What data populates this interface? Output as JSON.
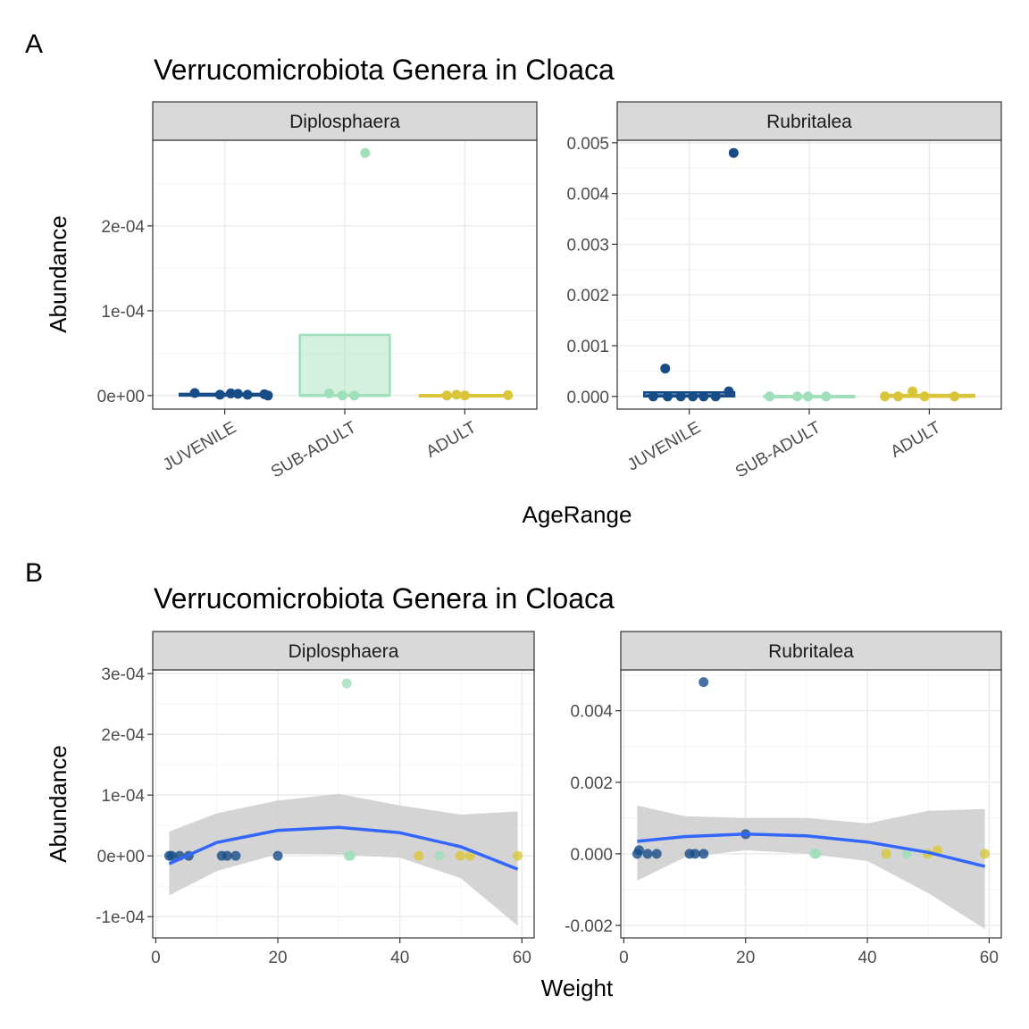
{
  "figure": {
    "label_a": "A",
    "label_b": "B"
  },
  "colors": {
    "JUVENILE": "#174c87",
    "SUB-ADULT": "#9fdfb9",
    "ADULT": "#d9c53a",
    "fit_line": "#3366ff",
    "ribbon": "#cccccc"
  },
  "chart_data": [
    {
      "type": "box",
      "panel": "A",
      "title": "Verrucomicrobiota Genera in Cloaca",
      "xlabel": "AgeRange",
      "ylabel": "Abundance",
      "categories": [
        "JUVENILE",
        "SUB-ADULT",
        "ADULT"
      ],
      "grid": true,
      "legend": "none",
      "facets": [
        {
          "name": "Diplosphaera",
          "ylim": [
            -1.6e-05,
            0.000301
          ],
          "yticks": [
            0,
            0.0001,
            0.0002
          ],
          "ytick_labels": [
            "0e+00",
            "1e-04",
            "2e-04"
          ],
          "boxes": [
            {
              "category": "JUVENILE",
              "q1": 0,
              "median": 5e-07,
              "q3": 2e-06
            },
            {
              "category": "SUB-ADULT",
              "q1": 0,
              "median": 0,
              "q3": 7.15e-05
            },
            {
              "category": "ADULT",
              "q1": 0,
              "median": 0,
              "q3": 5e-07
            }
          ],
          "points": [
            {
              "category": "JUVENILE",
              "jitter": -0.25,
              "value": 3e-06
            },
            {
              "category": "JUVENILE",
              "jitter": -0.04,
              "value": 1e-06
            },
            {
              "category": "JUVENILE",
              "jitter": 0.05,
              "value": 2.5e-06
            },
            {
              "category": "JUVENILE",
              "jitter": 0.11,
              "value": 2e-06
            },
            {
              "category": "JUVENILE",
              "jitter": 0.19,
              "value": 1e-06
            },
            {
              "category": "JUVENILE",
              "jitter": 0.33,
              "value": 1.5e-06
            },
            {
              "category": "JUVENILE",
              "jitter": 0.36,
              "value": 0
            },
            {
              "category": "SUB-ADULT",
              "jitter": -0.13,
              "value": 2.5e-06
            },
            {
              "category": "SUB-ADULT",
              "jitter": -0.02,
              "value": 0
            },
            {
              "category": "SUB-ADULT",
              "jitter": 0.08,
              "value": 0
            },
            {
              "category": "SUB-ADULT",
              "jitter": 0.17,
              "value": 0.000286
            },
            {
              "category": "ADULT",
              "jitter": -0.15,
              "value": 0
            },
            {
              "category": "ADULT",
              "jitter": -0.07,
              "value": 1e-06
            },
            {
              "category": "ADULT",
              "jitter": 0,
              "value": 0
            },
            {
              "category": "ADULT",
              "jitter": 0.36,
              "value": 5e-07
            }
          ]
        },
        {
          "name": "Rubritalea",
          "ylim": [
            -0.00025,
            0.00505
          ],
          "yticks": [
            0,
            0.001,
            0.002,
            0.003,
            0.004,
            0.005
          ],
          "ytick_labels": [
            "0.000",
            "0.001",
            "0.002",
            "0.003",
            "0.004",
            "0.005"
          ],
          "boxes": [
            {
              "category": "JUVENILE",
              "q1": 0,
              "median": 1e-05,
              "q3": 8e-05
            },
            {
              "category": "SUB-ADULT",
              "q1": 0,
              "median": 0,
              "q3": 1e-05
            },
            {
              "category": "ADULT",
              "q1": 0,
              "median": 0,
              "q3": 3e-05
            }
          ],
          "points": [
            {
              "category": "JUVENILE",
              "jitter": -0.3,
              "value": 0
            },
            {
              "category": "JUVENILE",
              "jitter": -0.2,
              "value": 0.00055
            },
            {
              "category": "JUVENILE",
              "jitter": -0.18,
              "value": 0
            },
            {
              "category": "JUVENILE",
              "jitter": -0.07,
              "value": 0
            },
            {
              "category": "JUVENILE",
              "jitter": 0.03,
              "value": 0
            },
            {
              "category": "JUVENILE",
              "jitter": 0.12,
              "value": 0
            },
            {
              "category": "JUVENILE",
              "jitter": 0.22,
              "value": 0
            },
            {
              "category": "JUVENILE",
              "jitter": 0.33,
              "value": 0.0001
            },
            {
              "category": "JUVENILE",
              "jitter": 0.37,
              "value": 0.0048
            },
            {
              "category": "SUB-ADULT",
              "jitter": -0.33,
              "value": 0
            },
            {
              "category": "SUB-ADULT",
              "jitter": -0.1,
              "value": 0
            },
            {
              "category": "SUB-ADULT",
              "jitter": -0.01,
              "value": 0
            },
            {
              "category": "SUB-ADULT",
              "jitter": 0.14,
              "value": 0
            },
            {
              "category": "ADULT",
              "jitter": -0.37,
              "value": 0
            },
            {
              "category": "ADULT",
              "jitter": -0.26,
              "value": 0
            },
            {
              "category": "ADULT",
              "jitter": -0.14,
              "value": 0.0001
            },
            {
              "category": "ADULT",
              "jitter": -0.04,
              "value": 0
            },
            {
              "category": "ADULT",
              "jitter": 0.21,
              "value": 0
            }
          ]
        }
      ]
    },
    {
      "type": "scatter",
      "panel": "B",
      "title": "Verrucomicrobiota Genera in Cloaca",
      "xlabel": "Weight",
      "ylabel": "Abundance",
      "xlim": [
        -0.5,
        62
      ],
      "xticks": [
        0,
        20,
        40,
        60
      ],
      "grid": true,
      "legend": "none",
      "facets": [
        {
          "name": "Diplosphaera",
          "ylim": [
            -0.000135,
            0.000306
          ],
          "yticks": [
            -0.0001,
            0,
            0.0001,
            0.0002,
            0.0003
          ],
          "ytick_labels": [
            "-1e-04",
            "0e+00",
            "1e-04",
            "2e-04",
            "3e-04"
          ],
          "points": [
            {
              "x": 2.2,
              "y": 0,
              "group": "JUVENILE"
            },
            {
              "x": 2.6,
              "y": 0,
              "group": "JUVENILE"
            },
            {
              "x": 3.9,
              "y": 0,
              "group": "JUVENILE"
            },
            {
              "x": 5.4,
              "y": 0,
              "group": "JUVENILE"
            },
            {
              "x": 10.8,
              "y": 0,
              "group": "JUVENILE"
            },
            {
              "x": 11.7,
              "y": 0,
              "group": "JUVENILE"
            },
            {
              "x": 13.1,
              "y": 0,
              "group": "JUVENILE"
            },
            {
              "x": 20.0,
              "y": 0,
              "group": "JUVENILE"
            },
            {
              "x": 31.3,
              "y": 0.000284,
              "group": "SUB-ADULT"
            },
            {
              "x": 31.6,
              "y": 0,
              "group": "SUB-ADULT"
            },
            {
              "x": 31.9,
              "y": 0,
              "group": "SUB-ADULT"
            },
            {
              "x": 43.1,
              "y": 0,
              "group": "ADULT"
            },
            {
              "x": 46.5,
              "y": 0,
              "group": "SUB-ADULT"
            },
            {
              "x": 49.9,
              "y": 0,
              "group": "ADULT"
            },
            {
              "x": 51.5,
              "y": 0,
              "group": "ADULT"
            },
            {
              "x": 59.3,
              "y": 0,
              "group": "ADULT"
            }
          ],
          "fit": {
            "x": [
              2.2,
              10,
              20,
              30,
              40,
              50,
              59.3
            ],
            "y": [
              -1.3e-05,
              2.2e-05,
              4.2e-05,
              4.7e-05,
              3.8e-05,
              1.5e-05,
              -2.2e-05
            ],
            "lower": [
              -6.5e-05,
              -2.5e-05,
              3e-06,
              2e-06,
              -3e-06,
              -3.7e-05,
              -0.000115
            ],
            "upper": [
              4e-05,
              7e-05,
              9.1e-05,
              0.000102,
              8.3e-05,
              6.8e-05,
              7.3e-05
            ]
          }
        },
        {
          "name": "Rubritalea",
          "ylim": [
            -0.00235,
            0.00514
          ],
          "yticks": [
            -0.002,
            0,
            0.002,
            0.004
          ],
          "ytick_labels": [
            "-0.002",
            "0.000",
            "0.002",
            "0.004"
          ],
          "points": [
            {
              "x": 2.2,
              "y": 0,
              "group": "JUVENILE"
            },
            {
              "x": 2.5,
              "y": 0.0001,
              "group": "JUVENILE"
            },
            {
              "x": 3.9,
              "y": 0,
              "group": "JUVENILE"
            },
            {
              "x": 5.4,
              "y": 0,
              "group": "JUVENILE"
            },
            {
              "x": 10.8,
              "y": 0,
              "group": "JUVENILE"
            },
            {
              "x": 11.7,
              "y": 0,
              "group": "JUVENILE"
            },
            {
              "x": 13.1,
              "y": 0,
              "group": "JUVENILE"
            },
            {
              "x": 13.1,
              "y": 0.0048,
              "group": "JUVENILE"
            },
            {
              "x": 20.0,
              "y": 0.00055,
              "group": "JUVENILE"
            },
            {
              "x": 31.3,
              "y": 0,
              "group": "SUB-ADULT"
            },
            {
              "x": 31.6,
              "y": 0,
              "group": "SUB-ADULT"
            },
            {
              "x": 43.1,
              "y": 0,
              "group": "ADULT"
            },
            {
              "x": 46.5,
              "y": 0,
              "group": "SUB-ADULT"
            },
            {
              "x": 49.9,
              "y": 0,
              "group": "ADULT"
            },
            {
              "x": 51.5,
              "y": 0.0001,
              "group": "ADULT"
            },
            {
              "x": 59.3,
              "y": 0,
              "group": "ADULT"
            }
          ],
          "fit": {
            "x": [
              2.2,
              10,
              20,
              30,
              40,
              50,
              59.3
            ],
            "y": [
              0.00035,
              0.00048,
              0.00055,
              0.0005,
              0.00033,
              4e-05,
              -0.00035
            ],
            "lower": [
              -0.00075,
              -0.0001,
              0.0001,
              0.0,
              -0.0002,
              -0.0011,
              -0.0021
            ],
            "upper": [
              0.00135,
              0.00105,
              0.001,
              0.001,
              0.00085,
              0.0012,
              0.00125
            ]
          }
        }
      ]
    }
  ]
}
